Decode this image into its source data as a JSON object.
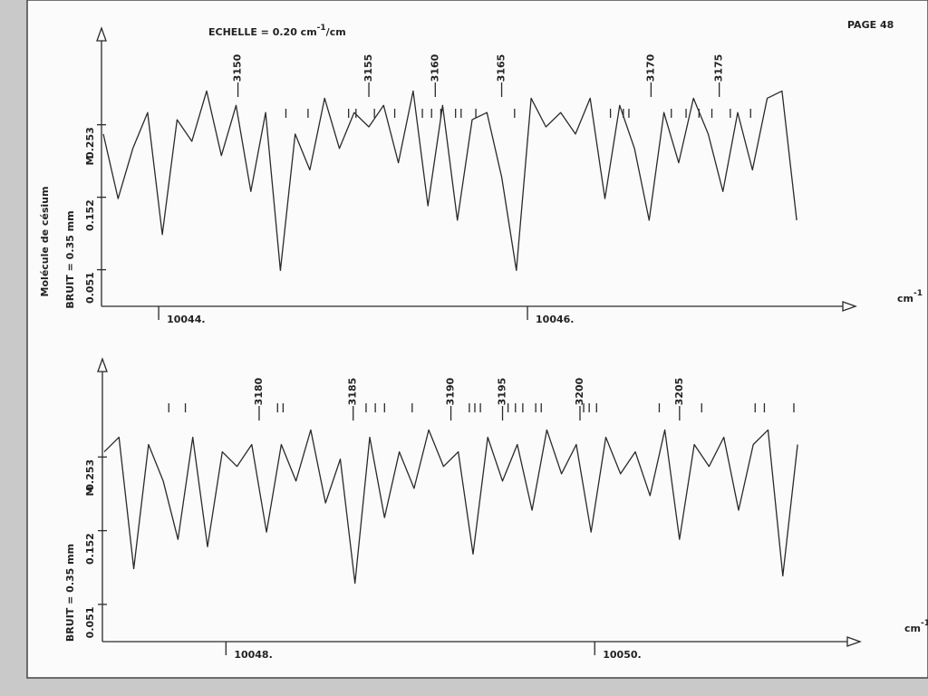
{
  "page": "PAGE 48",
  "scale_label": {
    "text": "ECHELLE = 0.20 cm",
    "sup": "-1",
    "tail": "/cm"
  },
  "chart_data": [
    {
      "type": "line",
      "x": [
        10043.7,
        10043.78,
        10043.86,
        10043.94,
        10044.02,
        10044.1,
        10044.18,
        10044.26,
        10044.34,
        10044.42,
        10044.5,
        10044.58,
        10044.66,
        10044.74,
        10044.82,
        10044.9,
        10044.98,
        10045.06,
        10045.14,
        10045.22,
        10045.3,
        10045.38,
        10045.46,
        10045.54,
        10045.62,
        10045.7,
        10045.78,
        10045.86,
        10045.94,
        10046.02,
        10046.1,
        10046.18,
        10046.26,
        10046.34,
        10046.42,
        10046.5,
        10046.58,
        10046.66,
        10046.74,
        10046.82,
        10046.9,
        10046.98,
        10047.06,
        10047.14,
        10047.22,
        10047.3,
        10047.38,
        10047.46
      ],
      "series": [
        {
          "color": "#2a2a2a",
          "values": [
            0.24,
            0.15,
            0.22,
            0.27,
            0.1,
            0.26,
            0.23,
            0.3,
            0.21,
            0.28,
            0.16,
            0.27,
            0.05,
            0.24,
            0.19,
            0.29,
            0.22,
            0.27,
            0.25,
            0.28,
            0.2,
            0.3,
            0.14,
            0.28,
            0.12,
            0.26,
            0.27,
            0.18,
            0.05,
            0.29,
            0.25,
            0.27,
            0.24,
            0.29,
            0.15,
            0.28,
            0.22,
            0.12,
            0.27,
            0.2,
            0.29,
            0.24,
            0.16,
            0.27,
            0.19,
            0.29,
            0.3,
            0.12
          ]
        }
      ],
      "xlim": [
        10043.69,
        10047.71
      ],
      "ylim": [
        0,
        0.37
      ],
      "xticks": [
        {
          "value": 10044,
          "label": "10044."
        },
        {
          "value": 10046,
          "label": "10046."
        }
      ],
      "yticks": [
        0.051,
        0.152,
        0.253
      ],
      "y_label": "BRUIT = 0.35 mm",
      "y_label2": "Molécule de césium",
      "y_unit": "M",
      "x_label": {
        "text": "cm",
        "sup": "-1"
      },
      "line_labels": [
        {
          "label": "3150",
          "x": 10044.43
        },
        {
          "label": "3155",
          "x": 10045.14
        },
        {
          "label": "3160",
          "x": 10045.5
        },
        {
          "label": "3165",
          "x": 10045.86
        },
        {
          "label": "3170",
          "x": 10046.67
        },
        {
          "label": "3175",
          "x": 10047.04
        }
      ],
      "line_ticks": [
        10044.69,
        10044.81,
        10045.03,
        10045.07,
        10045.17,
        10045.28,
        10045.43,
        10045.48,
        10045.53,
        10045.61,
        10045.64,
        10045.72,
        10045.93,
        10046.45,
        10046.52,
        10046.55,
        10046.78,
        10046.86,
        10046.93,
        10047.0,
        10047.1,
        10047.21
      ]
    },
    {
      "type": "line",
      "x": [
        10047.34,
        10047.42,
        10047.5,
        10047.58,
        10047.66,
        10047.74,
        10047.82,
        10047.9,
        10047.98,
        10048.06,
        10048.14,
        10048.22,
        10048.3,
        10048.38,
        10048.46,
        10048.54,
        10048.62,
        10048.7,
        10048.78,
        10048.86,
        10048.94,
        10049.02,
        10049.1,
        10049.18,
        10049.26,
        10049.34,
        10049.42,
        10049.5,
        10049.58,
        10049.66,
        10049.74,
        10049.82,
        10049.9,
        10049.98,
        10050.06,
        10050.14,
        10050.22,
        10050.3,
        10050.38,
        10050.46,
        10050.54,
        10050.62,
        10050.7,
        10050.78,
        10050.86,
        10050.94,
        10051.02,
        10051.1
      ],
      "series": [
        {
          "color": "#2a2a2a",
          "values": [
            0.26,
            0.28,
            0.1,
            0.27,
            0.22,
            0.14,
            0.28,
            0.13,
            0.26,
            0.24,
            0.27,
            0.15,
            0.27,
            0.22,
            0.29,
            0.19,
            0.25,
            0.08,
            0.28,
            0.17,
            0.26,
            0.21,
            0.29,
            0.24,
            0.26,
            0.12,
            0.28,
            0.22,
            0.27,
            0.18,
            0.29,
            0.23,
            0.27,
            0.15,
            0.28,
            0.23,
            0.26,
            0.2,
            0.29,
            0.14,
            0.27,
            0.24,
            0.28,
            0.18,
            0.27,
            0.29,
            0.09,
            0.27
          ]
        }
      ],
      "xlim": [
        10047.33,
        10051.37
      ],
      "ylim": [
        0,
        0.37
      ],
      "xticks": [
        {
          "value": 10048,
          "label": "10048."
        },
        {
          "value": 10050,
          "label": "10050."
        }
      ],
      "yticks": [
        0.051,
        0.152,
        0.253
      ],
      "y_label": "BRUIT = 0.35 mm",
      "y_unit": "M",
      "x_label": {
        "text": "cm",
        "sup": "-1"
      },
      "line_labels": [
        {
          "label": "3180",
          "x": 10048.18
        },
        {
          "label": "3185",
          "x": 10048.69
        },
        {
          "label": "3190",
          "x": 10049.22
        },
        {
          "label": "3195",
          "x": 10049.5
        },
        {
          "label": "3200",
          "x": 10049.92
        },
        {
          "label": "3205",
          "x": 10050.46
        }
      ],
      "line_ticks": [
        10047.69,
        10047.78,
        10048.28,
        10048.31,
        10048.76,
        10048.81,
        10048.86,
        10049.01,
        10049.32,
        10049.35,
        10049.38,
        10049.53,
        10049.57,
        10049.61,
        10049.68,
        10049.71,
        10049.94,
        10049.97,
        10050.01,
        10050.35,
        10050.58,
        10050.87,
        10050.92,
        10051.08
      ]
    }
  ]
}
